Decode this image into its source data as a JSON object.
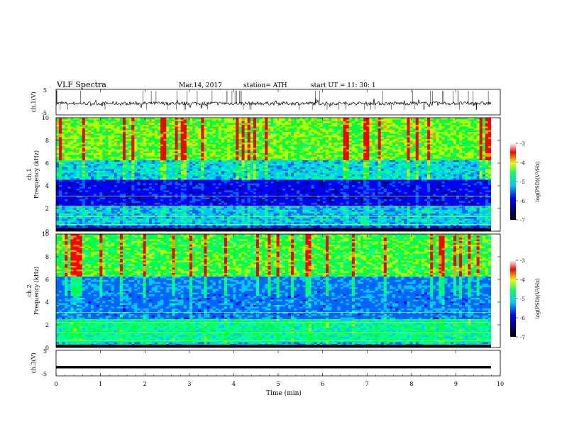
{
  "header": {
    "title": "VLF  Spectra",
    "date": "Mar.14, 2017",
    "station": "station= ATH",
    "start": "start  UT  =    11: 30: 1"
  },
  "chart_data": [
    {
      "type": "line",
      "panel": "ch1-waveform",
      "ylabel": "ch.1(V)",
      "ylim": [
        -5,
        5
      ],
      "yticks": [
        "5",
        "-5"
      ],
      "xlim": [
        0,
        10
      ],
      "baseline": -0.5
    },
    {
      "type": "heatmap",
      "panel": "ch1-spectrogram",
      "ylabel_line1": "ch.1",
      "ylabel_line2": "Frequency  (kHz)",
      "ylim": [
        0,
        10
      ],
      "yticks": [
        "0",
        "2",
        "4",
        "6",
        "8",
        "10"
      ],
      "xlim": [
        0,
        10
      ],
      "colorbar": {
        "label": "log(PSD)(V²/Hz)",
        "range": [
          -7,
          -3
        ],
        "ticks": [
          "-3",
          "-4",
          "-5",
          "-6",
          "-7"
        ]
      }
    },
    {
      "type": "heatmap",
      "panel": "ch2-spectrogram",
      "ylabel_line1": "ch.2",
      "ylabel_line2": "Frequency  (kHz)",
      "ylim": [
        0,
        10
      ],
      "yticks": [
        "0",
        "2",
        "4",
        "6",
        "8",
        "10"
      ],
      "xlim": [
        0,
        10
      ],
      "colorbar": {
        "label": "log(PSD)(V²/Hz)",
        "range": [
          -7,
          -3
        ],
        "ticks": [
          "-3",
          "-4",
          "-5",
          "-6",
          "-7"
        ]
      }
    },
    {
      "type": "line",
      "panel": "ch3-waveform",
      "ylabel": "ch.3(V)",
      "ylim": [
        -5,
        5
      ],
      "yticks": [
        "5",
        "-5"
      ],
      "xlim": [
        0,
        10
      ],
      "baseline": -1.6,
      "xlabel": "Time  (min)",
      "xticks": [
        "0",
        "1",
        "2",
        "3",
        "4",
        "5",
        "6",
        "7",
        "8",
        "9",
        "10"
      ]
    }
  ],
  "colors": {
    "deep_blue": "#00007a",
    "blue": "#0000ff",
    "cyan": "#00c8ff",
    "green": "#00ff64",
    "yellow": "#e6ff00",
    "red": "#ff0000",
    "black": "#000000"
  }
}
